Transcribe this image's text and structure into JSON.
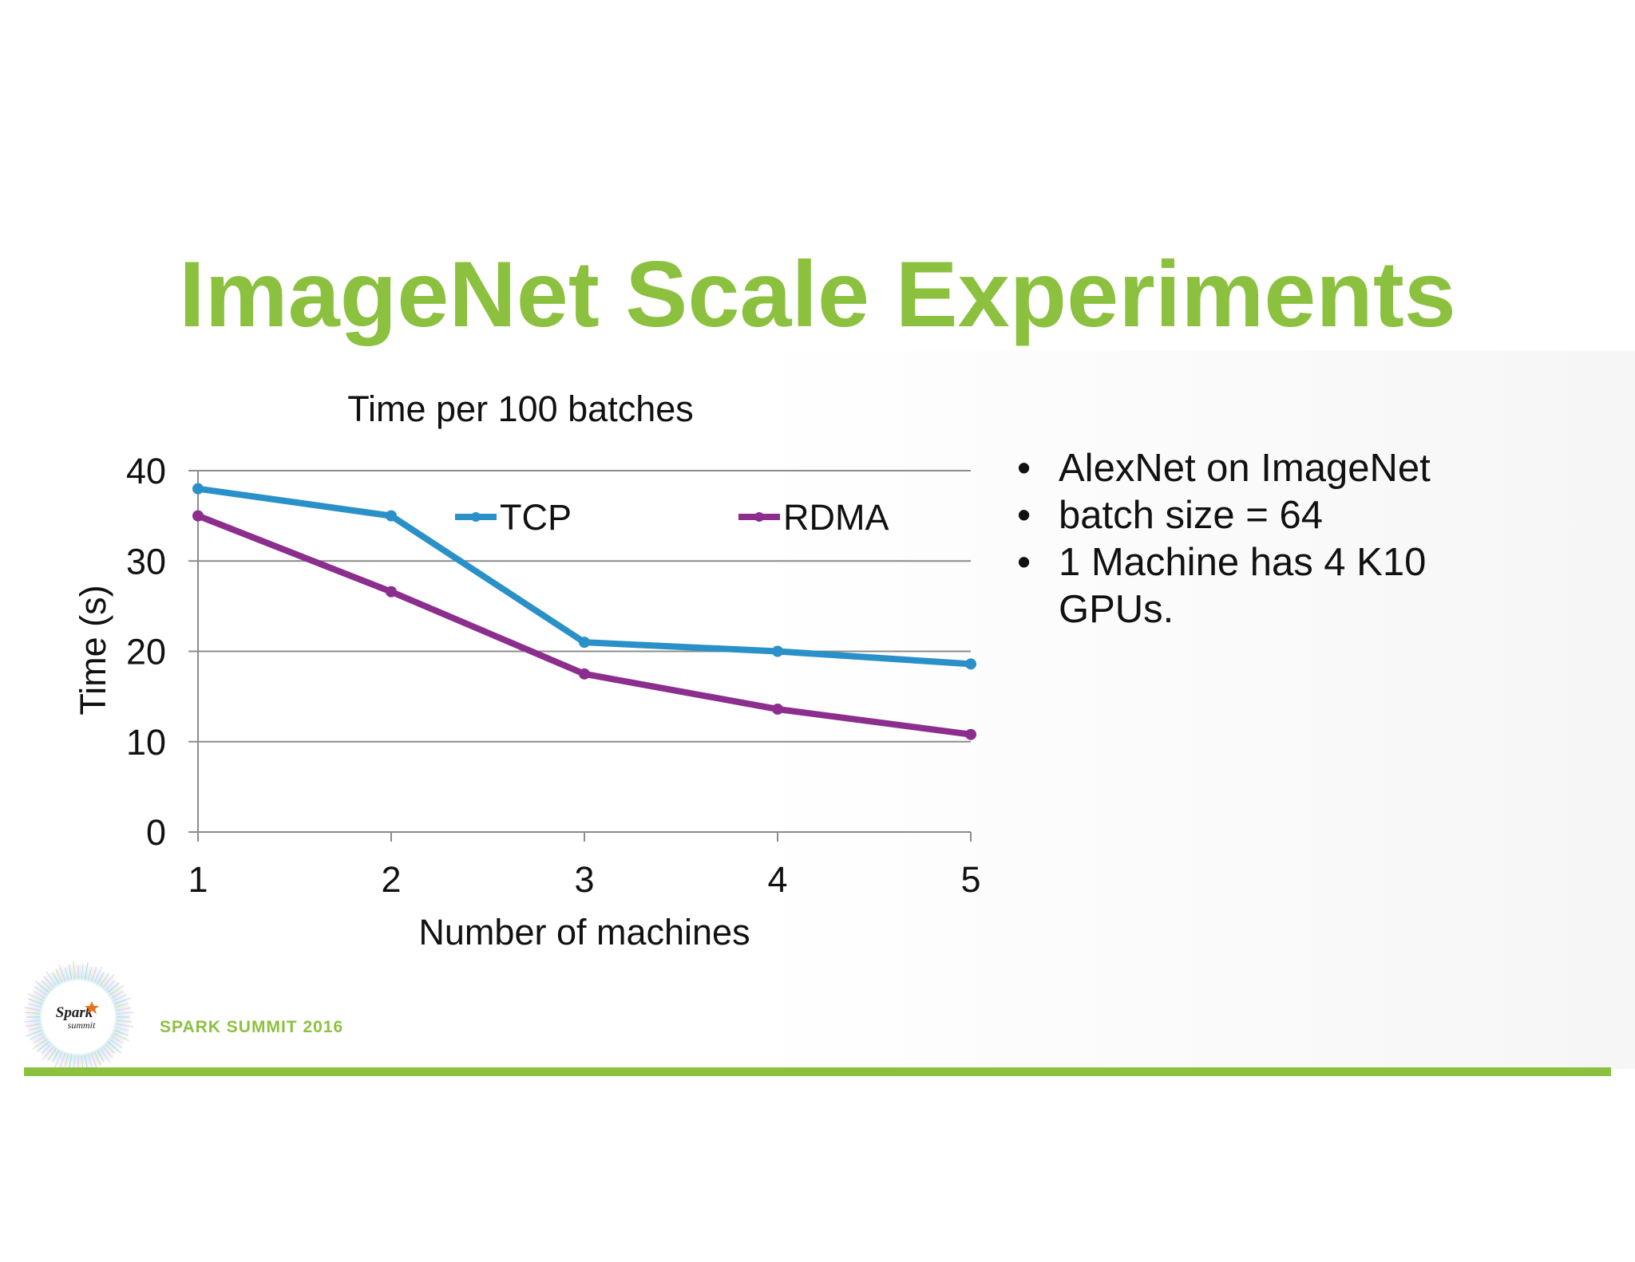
{
  "slide": {
    "title": "ImageNet Scale Experiments",
    "bullets": [
      "AlexNet on ImageNet",
      "batch size = 64",
      "1 Machine has 4 K10 GPUs."
    ],
    "event_label": "SPARK SUMMIT 2016",
    "logo_text": [
      "Spark",
      "summit"
    ],
    "logo_icon": "star-icon",
    "colors": {
      "accent": "#8cc13f",
      "tcp": "#2a90c8",
      "rdma": "#8b2e8e"
    }
  },
  "chart_data": {
    "type": "line",
    "title": "Time per 100 batches",
    "xlabel": "Number of machines",
    "ylabel": "Time (s)",
    "x": [
      1,
      2,
      3,
      4,
      5
    ],
    "ylim": [
      0,
      40
    ],
    "yticks": [
      0,
      10,
      20,
      30,
      40
    ],
    "grid": true,
    "legend_position": "top",
    "series": [
      {
        "name": "TCP",
        "color": "#2a90c8",
        "values": [
          38,
          35,
          21,
          20,
          18.6
        ]
      },
      {
        "name": "RDMA",
        "color": "#8b2e8e",
        "values": [
          35,
          26.6,
          17.5,
          13.6,
          10.8
        ]
      }
    ]
  }
}
